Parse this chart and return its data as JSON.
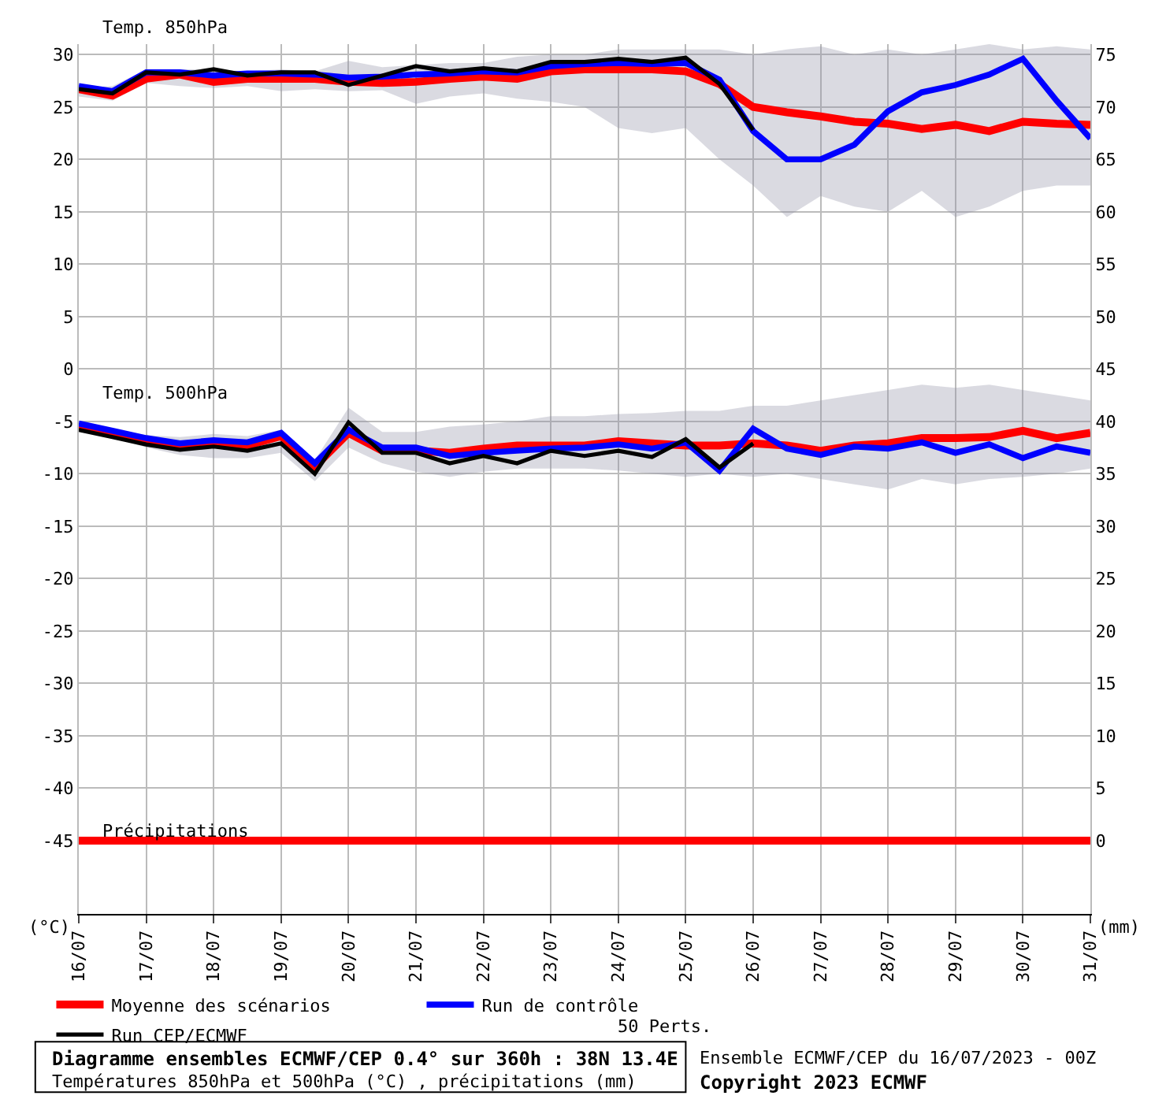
{
  "chart_data": {
    "type": "line",
    "title": "Diagramme ensembles ECMWF/CEP 0.4° sur 360h : 38N 13.4E",
    "subtitle": "Températures 850hPa et 500hPa (°C) , précipitations (mm)",
    "ylabel": "(°C)",
    "y2label": "(mm)",
    "x": [
      "2023-07-16T00:00",
      "2023-07-16T12:00",
      "2023-07-17T00:00",
      "2023-07-17T12:00",
      "2023-07-18T00:00",
      "2023-07-18T12:00",
      "2023-07-19T00:00",
      "2023-07-19T12:00",
      "2023-07-20T00:00",
      "2023-07-20T12:00",
      "2023-07-21T00:00",
      "2023-07-21T12:00",
      "2023-07-22T00:00",
      "2023-07-22T12:00",
      "2023-07-23T00:00",
      "2023-07-23T12:00",
      "2023-07-24T00:00",
      "2023-07-24T12:00",
      "2023-07-25T00:00",
      "2023-07-25T12:00",
      "2023-07-26T00:00",
      "2023-07-26T12:00",
      "2023-07-27T00:00",
      "2023-07-27T12:00",
      "2023-07-28T00:00",
      "2023-07-28T12:00",
      "2023-07-29T00:00",
      "2023-07-29T12:00",
      "2023-07-30T00:00",
      "2023-07-30T12:00",
      "2023-07-31T00:00"
    ],
    "series": [
      {
        "name": "Moyenne des scénarios",
        "color": "#ff0000",
        "values": [
          26.7,
          26.1,
          27.7,
          28.1,
          27.4,
          27.7,
          27.7,
          27.7,
          27.4,
          27.3,
          27.4,
          27.7,
          27.9,
          27.7,
          28.4,
          28.6,
          28.6,
          28.6,
          28.4,
          27.2,
          25.0,
          24.5,
          24.1,
          23.6,
          23.4,
          22.9,
          23.3,
          22.7,
          23.6,
          23.4,
          23.3
        ],
        "lower": [
          26.0,
          25.6,
          27.3,
          27.0,
          26.8,
          27.0,
          26.5,
          26.7,
          26.5,
          26.6,
          25.3,
          26.0,
          26.3,
          25.8,
          25.5,
          25.0,
          23.0,
          22.5,
          23.0,
          20.0,
          17.5,
          14.5,
          16.5,
          15.5,
          15.0,
          17.0,
          14.5,
          15.5,
          17.0,
          17.5,
          17.5
        ],
        "upper": [
          26.8,
          27.0,
          28.6,
          28.6,
          28.6,
          28.4,
          28.6,
          28.4,
          29.4,
          28.8,
          29.0,
          29.2,
          29.2,
          29.8,
          30.0,
          30.0,
          30.5,
          30.5,
          30.5,
          30.5,
          30.0,
          30.5,
          30.8,
          30.0,
          30.5,
          30.0,
          30.5,
          31.0,
          30.5,
          30.8,
          30.5
        ]
      },
      {
        "name": "Run de contrôle",
        "color": "#0000ff",
        "values": [
          27.0,
          26.5,
          28.3,
          28.3,
          28.0,
          28.2,
          28.2,
          28.1,
          27.8,
          27.9,
          28.1,
          28.2,
          28.4,
          28.3,
          28.9,
          29.1,
          29.2,
          29.1,
          29.2,
          27.6,
          22.7,
          20.0,
          20.0,
          21.4,
          24.6,
          26.4,
          27.1,
          28.1,
          29.6,
          25.6,
          22.0
        ]
      },
      {
        "name": "Run CEP/ECMWF",
        "color": "#000000",
        "values": [
          26.7,
          26.3,
          28.3,
          28.1,
          28.6,
          28.0,
          28.3,
          28.3,
          27.1,
          28.0,
          28.9,
          28.4,
          28.7,
          28.4,
          29.3,
          29.3,
          29.6,
          29.3,
          29.7,
          27.2,
          22.8,
          null,
          null,
          null,
          null,
          null,
          null,
          null,
          null,
          null,
          null
        ]
      },
      {
        "color": "#ff0000",
        "values": [
          -5.5,
          -6.2,
          -6.9,
          -7.4,
          -7.1,
          -7.3,
          -6.4,
          -9.3,
          -6.1,
          -7.8,
          -7.8,
          -8.0,
          -7.6,
          -7.3,
          -7.3,
          -7.3,
          -6.9,
          -7.1,
          -7.3,
          -7.3,
          -7.1,
          -7.3,
          -7.8,
          -7.3,
          -7.1,
          -6.6,
          -6.6,
          -6.5,
          -5.9,
          -6.6,
          -6.1
        ],
        "lower": [
          -5.8,
          -6.5,
          -7.5,
          -8.2,
          -8.5,
          -8.5,
          -8.0,
          -10.7,
          -7.5,
          -9.0,
          -9.8,
          -10.3,
          -9.8,
          -9.5,
          -9.5,
          -9.5,
          -9.7,
          -10.0,
          -10.3,
          -10.0,
          -10.3,
          -10.0,
          -10.5,
          -11.0,
          -11.5,
          -10.5,
          -11.0,
          -10.5,
          -10.3,
          -10.0,
          -9.5
        ],
        "upper": [
          -5.2,
          -5.8,
          -6.3,
          -6.5,
          -6.2,
          -6.4,
          -5.8,
          -8.7,
          -3.7,
          -6.0,
          -6.0,
          -5.5,
          -5.3,
          -5.0,
          -4.5,
          -4.5,
          -4.3,
          -4.2,
          -4.0,
          -4.0,
          -3.5,
          -3.5,
          -3.0,
          -2.5,
          -2.0,
          -1.5,
          -1.8,
          -1.5,
          -2.0,
          -2.5,
          -3.0
        ]
      },
      {
        "color": "#0000ff",
        "values": [
          -5.2,
          -5.9,
          -6.6,
          -7.1,
          -6.8,
          -7.0,
          -6.1,
          -9.0,
          -5.8,
          -7.5,
          -7.5,
          -8.3,
          -8.0,
          -7.8,
          -7.6,
          -7.5,
          -7.2,
          -7.6,
          -7.0,
          -9.7,
          -5.7,
          -7.6,
          -8.2,
          -7.4,
          -7.6,
          -7.0,
          -8.0,
          -7.2,
          -8.5,
          -7.4,
          -8.0
        ]
      },
      {
        "color": "#000000",
        "values": [
          -5.8,
          -6.5,
          -7.2,
          -7.7,
          -7.4,
          -7.8,
          -7.1,
          -10.0,
          -5.1,
          -8.0,
          -8.0,
          -9.0,
          -8.3,
          -9.0,
          -7.8,
          -8.3,
          -7.8,
          -8.4,
          -6.7,
          -9.4,
          -7.1,
          null,
          null,
          null,
          null,
          null,
          null,
          null,
          null,
          null,
          null
        ]
      },
      {
        "color": "#ff0000",
        "axis": "y2",
        "values": [
          0,
          0,
          0,
          0,
          0,
          0,
          0,
          0,
          0,
          0,
          0,
          0,
          0,
          0,
          0,
          0,
          0,
          0,
          0,
          0,
          0,
          0,
          0,
          0,
          0,
          0,
          0,
          0,
          0,
          0,
          0
        ]
      }
    ],
    "ylim": [
      -52,
      31
    ],
    "yticks": [
      -45,
      -40,
      -35,
      -30,
      -25,
      -20,
      -15,
      -10,
      -5,
      0,
      5,
      10,
      15,
      20,
      25,
      30
    ],
    "y2lim": [
      -7,
      76
    ],
    "y2ticks": [
      0,
      5,
      10,
      15,
      20,
      25,
      30,
      35,
      40,
      45,
      50,
      55,
      60,
      65,
      70,
      75
    ],
    "xlim": [
      "2023-07-16T00:00",
      "2023-07-31T00:00"
    ],
    "xticks": [
      {
        "value": "2023-07-16",
        "label": "16/07"
      },
      {
        "value": "2023-07-17",
        "label": "17/07"
      },
      {
        "value": "2023-07-18",
        "label": "18/07"
      },
      {
        "value": "2023-07-19",
        "label": "19/07"
      },
      {
        "value": "2023-07-20",
        "label": "20/07"
      },
      {
        "value": "2023-07-21",
        "label": "21/07"
      },
      {
        "value": "2023-07-22",
        "label": "22/07"
      },
      {
        "value": "2023-07-23",
        "label": "23/07"
      },
      {
        "value": "2023-07-24",
        "label": "24/07"
      },
      {
        "value": "2023-07-25",
        "label": "25/07"
      },
      {
        "value": "2023-07-26",
        "label": "26/07"
      },
      {
        "value": "2023-07-27",
        "label": "27/07"
      },
      {
        "value": "2023-07-28",
        "label": "28/07"
      },
      {
        "value": "2023-07-29",
        "label": "29/07"
      },
      {
        "value": "2023-07-30",
        "label": "30/07"
      },
      {
        "value": "2023-07-31",
        "label": "31/07"
      }
    ],
    "grid": true,
    "legend": "bottom left",
    "annotations": [
      "Temp. 850hPa",
      "Temp. 500hPa",
      "Précipitations",
      "50 Perts.",
      "Ensemble ECMWF/CEP du 16/07/2023 - 00Z",
      "Copyright 2023 ECMWF"
    ]
  }
}
